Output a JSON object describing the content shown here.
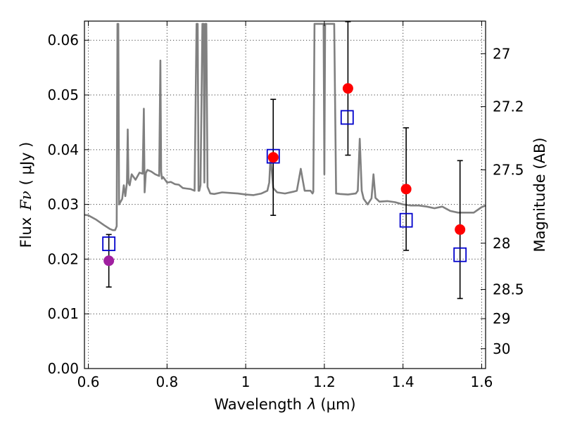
{
  "chart_data": {
    "type": "scatter",
    "title": "",
    "xlabel_prefix": "Wavelength",
    "xlabel_symbol": "λ",
    "xlabel_unit": "(μm)",
    "ylabel_prefix": "Flux",
    "ylabel_symbol": "Fν",
    "ylabel_unit": "( μJy )",
    "y2label": "Magnitude (AB)",
    "xlim": [
      0.59,
      1.61
    ],
    "ylim": [
      0.0,
      0.0635
    ],
    "grid": true,
    "x_ticks": [
      0.6,
      0.8,
      1.0,
      1.2,
      1.4,
      1.6
    ],
    "x_tick_labels": [
      "0.6",
      "0.8",
      "1",
      "1.2",
      "1.4",
      "1.6"
    ],
    "y_ticks": [
      0.0,
      0.01,
      0.02,
      0.03,
      0.04,
      0.05,
      0.06
    ],
    "y_tick_labels": [
      "0.00",
      "0.01",
      "0.02",
      "0.03",
      "0.04",
      "0.05",
      "0.06"
    ],
    "y2_ticks": [
      27,
      27.2,
      27.5,
      28,
      28.5,
      29,
      30
    ],
    "y2_tick_labels": [
      "27",
      "27.2",
      "27.5",
      "28",
      "28.5",
      "29",
      "30"
    ],
    "colors": {
      "model": "#808080",
      "observed": "#ff0000",
      "observed_optical": "#a020a0",
      "model_band": "#0000cc",
      "errorbar": "#000000"
    },
    "series": [
      {
        "type": "line",
        "x": [
          0.59,
          0.6,
          0.62,
          0.64,
          0.655,
          0.662,
          0.668,
          0.672,
          0.674,
          0.676,
          0.678,
          0.682,
          0.686,
          0.69,
          0.694,
          0.698,
          0.7,
          0.702,
          0.705,
          0.71,
          0.72,
          0.73,
          0.738,
          0.741,
          0.743,
          0.746,
          0.75,
          0.76,
          0.77,
          0.78,
          0.783,
          0.785,
          0.787,
          0.79,
          0.8,
          0.81,
          0.82,
          0.83,
          0.84,
          0.85,
          0.86,
          0.87,
          0.875,
          0.878,
          0.88,
          0.882,
          0.885,
          0.89,
          0.893,
          0.895,
          0.897,
          0.9,
          0.903,
          0.91,
          0.92,
          0.94,
          0.96,
          0.98,
          1.0,
          1.02,
          1.04,
          1.055,
          1.06,
          1.063,
          1.066,
          1.07,
          1.08,
          1.1,
          1.12,
          1.13,
          1.135,
          1.14,
          1.145,
          1.15,
          1.16,
          1.165,
          1.17,
          1.172,
          1.175,
          1.18,
          1.19,
          1.198,
          1.2,
          1.202,
          1.205,
          1.21,
          1.22,
          1.225,
          1.23,
          1.24,
          1.26,
          1.28,
          1.285,
          1.29,
          1.295,
          1.3,
          1.31,
          1.32,
          1.325,
          1.33,
          1.34,
          1.36,
          1.38,
          1.4,
          1.42,
          1.44,
          1.46,
          1.48,
          1.5,
          1.52,
          1.54,
          1.56,
          1.58,
          1.6,
          1.61
        ],
        "y": [
          0.0281,
          0.028,
          0.0272,
          0.0262,
          0.0255,
          0.0253,
          0.0253,
          0.026,
          0.063,
          0.063,
          0.03,
          0.0305,
          0.031,
          0.0335,
          0.0315,
          0.034,
          0.0437,
          0.034,
          0.0335,
          0.0355,
          0.0345,
          0.0358,
          0.0356,
          0.0475,
          0.0322,
          0.0357,
          0.0363,
          0.036,
          0.0355,
          0.0352,
          0.0563,
          0.036,
          0.0347,
          0.035,
          0.034,
          0.0341,
          0.0337,
          0.0336,
          0.033,
          0.0329,
          0.0328,
          0.0325,
          0.063,
          0.063,
          0.0325,
          0.0325,
          0.0335,
          0.063,
          0.063,
          0.034,
          0.063,
          0.063,
          0.0332,
          0.032,
          0.0319,
          0.0322,
          0.0321,
          0.032,
          0.0318,
          0.0317,
          0.032,
          0.0325,
          0.034,
          0.0385,
          0.0365,
          0.033,
          0.0322,
          0.032,
          0.0323,
          0.0325,
          0.0345,
          0.0365,
          0.0345,
          0.0325,
          0.0325,
          0.0325,
          0.032,
          0.0323,
          0.063,
          0.063,
          0.063,
          0.063,
          0.0355,
          0.063,
          0.063,
          0.063,
          0.063,
          0.063,
          0.032,
          0.0319,
          0.0318,
          0.032,
          0.0325,
          0.042,
          0.0325,
          0.031,
          0.03,
          0.0311,
          0.0355,
          0.0312,
          0.0305,
          0.0306,
          0.0304,
          0.03,
          0.0298,
          0.0298,
          0.0296,
          0.0293,
          0.0296,
          0.0288,
          0.0285,
          0.0285,
          0.0285,
          0.0295,
          0.0298
        ]
      },
      {
        "type": "scatter",
        "marker": "circle",
        "x": [
          0.652,
          1.07,
          1.26,
          1.408,
          1.545
        ],
        "y": [
          0.0197,
          0.0386,
          0.0512,
          0.0328,
          0.0254
        ],
        "yerr": [
          0.0048,
          0.0106,
          0.0122,
          0.0112,
          0.0126
        ],
        "color_keys": [
          "observed_optical",
          "observed",
          "observed",
          "observed",
          "observed"
        ]
      },
      {
        "type": "scatter",
        "marker": "open-square",
        "x": [
          0.652,
          1.07,
          1.258,
          1.408,
          1.545
        ],
        "y": [
          0.0228,
          0.0388,
          0.0459,
          0.0271,
          0.0208
        ]
      }
    ]
  }
}
